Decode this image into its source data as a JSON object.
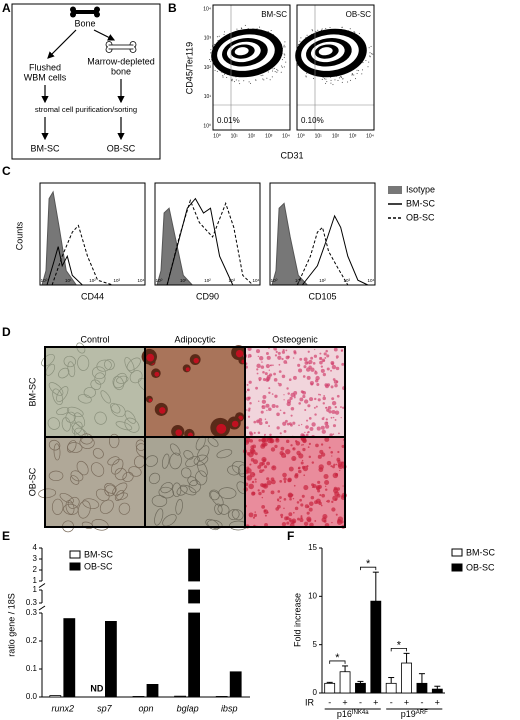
{
  "panel_A": {
    "letter": "A",
    "bone": "Bone",
    "flushed_1": "Flushed",
    "flushed_2": "WBM cells",
    "depleted_1": "Marrow-depleted",
    "depleted_2": "bone",
    "process": "stromal cell purification/sorting",
    "out_left": "BM-SC",
    "out_right": "OB-SC"
  },
  "panel_B": {
    "letter": "B",
    "y_label": "CD45/Ter119",
    "x_label": "CD31",
    "plots": [
      {
        "name": "BM-SC",
        "gate": "0.01%"
      },
      {
        "name": "OB-SC",
        "gate": "0.10%"
      }
    ],
    "ticks": [
      "10⁰",
      "10¹",
      "10²",
      "10³",
      "10⁴"
    ]
  },
  "panel_C": {
    "letter": "C",
    "y_label": "Counts",
    "plots": [
      "CD44",
      "CD90",
      "CD105"
    ],
    "ticks": [
      "10⁰",
      "10¹",
      "10²",
      "10³",
      "10⁴"
    ],
    "legend": [
      "Isotype",
      "BM-SC",
      "OB-SC"
    ]
  },
  "panel_D": {
    "letter": "D",
    "columns": [
      "Control",
      "Adipocytic",
      "Osteogenic"
    ],
    "rows": [
      "BM-SC",
      "OB-SC"
    ]
  },
  "chart_data": [
    {
      "type": "bar",
      "letter": "E",
      "y_label": "ratio gene / 18S",
      "categories": [
        "runx2",
        "sp7",
        "opn",
        "bglap",
        "ibsp"
      ],
      "series": [
        {
          "name": "BM-SC",
          "color": "#ffffff",
          "values": [
            0.005,
            null,
            0.002,
            0.003,
            0.002
          ],
          "value_labels": [
            null,
            "ND",
            null,
            null,
            null
          ]
        },
        {
          "name": "OB-SC",
          "color": "#000000",
          "values": [
            0.28,
            0.27,
            0.045,
            3.9,
            0.09
          ]
        }
      ],
      "ylim_segments": [
        [
          0,
          0.3
        ],
        [
          0.3,
          1
        ],
        [
          1,
          4
        ]
      ],
      "yticks": [
        [
          {
            "value": 0,
            "label": "0.0"
          },
          0.1,
          0.2,
          0.3
        ],
        [
          0.3,
          1
        ],
        [
          1,
          2,
          3,
          4
        ]
      ]
    },
    {
      "type": "bar",
      "letter": "F",
      "y_label": "Fold increase",
      "x_prefix": "IR",
      "categories": [
        "-",
        "+",
        "-",
        "+",
        "-",
        "+",
        "-",
        "+"
      ],
      "groups": [
        {
          "label": "p16",
          "superscript": "INK4a"
        },
        {
          "label": "p19",
          "superscript": "ARF"
        }
      ],
      "series": [
        {
          "name": "BM-SC",
          "color": "#ffffff",
          "values": [
            1.0,
            2.2,
            null,
            null,
            1.0,
            3.1,
            null,
            null
          ],
          "errors": [
            0.1,
            0.6,
            null,
            null,
            0.6,
            1.0,
            null,
            null
          ]
        },
        {
          "name": "OB-SC",
          "color": "#000000",
          "values": [
            null,
            null,
            1.0,
            9.5,
            null,
            null,
            1.0,
            0.4
          ],
          "errors": [
            null,
            null,
            0.2,
            3.0,
            null,
            null,
            1.0,
            0.3
          ]
        }
      ],
      "ylim": [
        0,
        15
      ],
      "yticks": [
        0,
        5,
        10,
        15
      ],
      "annotations": [
        "*",
        "*",
        "*"
      ]
    }
  ]
}
